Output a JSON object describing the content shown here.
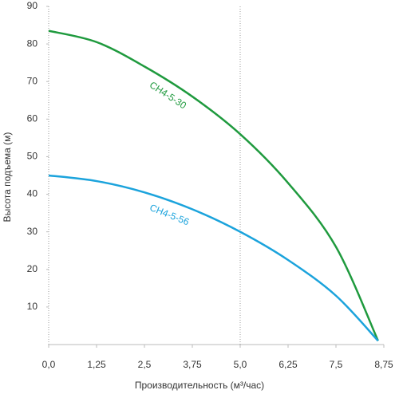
{
  "chart_data": {
    "type": "line",
    "x_label": "Производительность (м³/час)",
    "y_label": "Высота подъема (м)",
    "x": [
      0,
      1.25,
      2.5,
      3.75,
      5,
      6.25,
      7.5,
      8.6
    ],
    "series": [
      {
        "name": "CH4-5-30",
        "color": "#1f9a3e",
        "values": [
          83.5,
          80.5,
          74,
          66,
          56,
          43,
          26,
          1
        ]
      },
      {
        "name": "CH4-5-56",
        "color": "#1ba3dc",
        "values": [
          45,
          43.5,
          40.5,
          36,
          30,
          22.5,
          13,
          1
        ]
      }
    ],
    "xlim": [
      0,
      8.75
    ],
    "ylim": [
      0,
      90
    ],
    "xticks": [
      {
        "value": 0,
        "label": "0,0"
      },
      {
        "value": 1.25,
        "label": "1,25"
      },
      {
        "value": 2.5,
        "label": "2,5"
      },
      {
        "value": 3.75,
        "label": "3,75"
      },
      {
        "value": 5,
        "label": "5,0"
      },
      {
        "value": 6.25,
        "label": "6,25"
      },
      {
        "value": 7.5,
        "label": "7,5"
      },
      {
        "value": 8.75,
        "label": "8,75"
      }
    ],
    "yticks": [
      10,
      20,
      30,
      40,
      50,
      60,
      70,
      80,
      90
    ],
    "grid_x": [
      5
    ]
  }
}
